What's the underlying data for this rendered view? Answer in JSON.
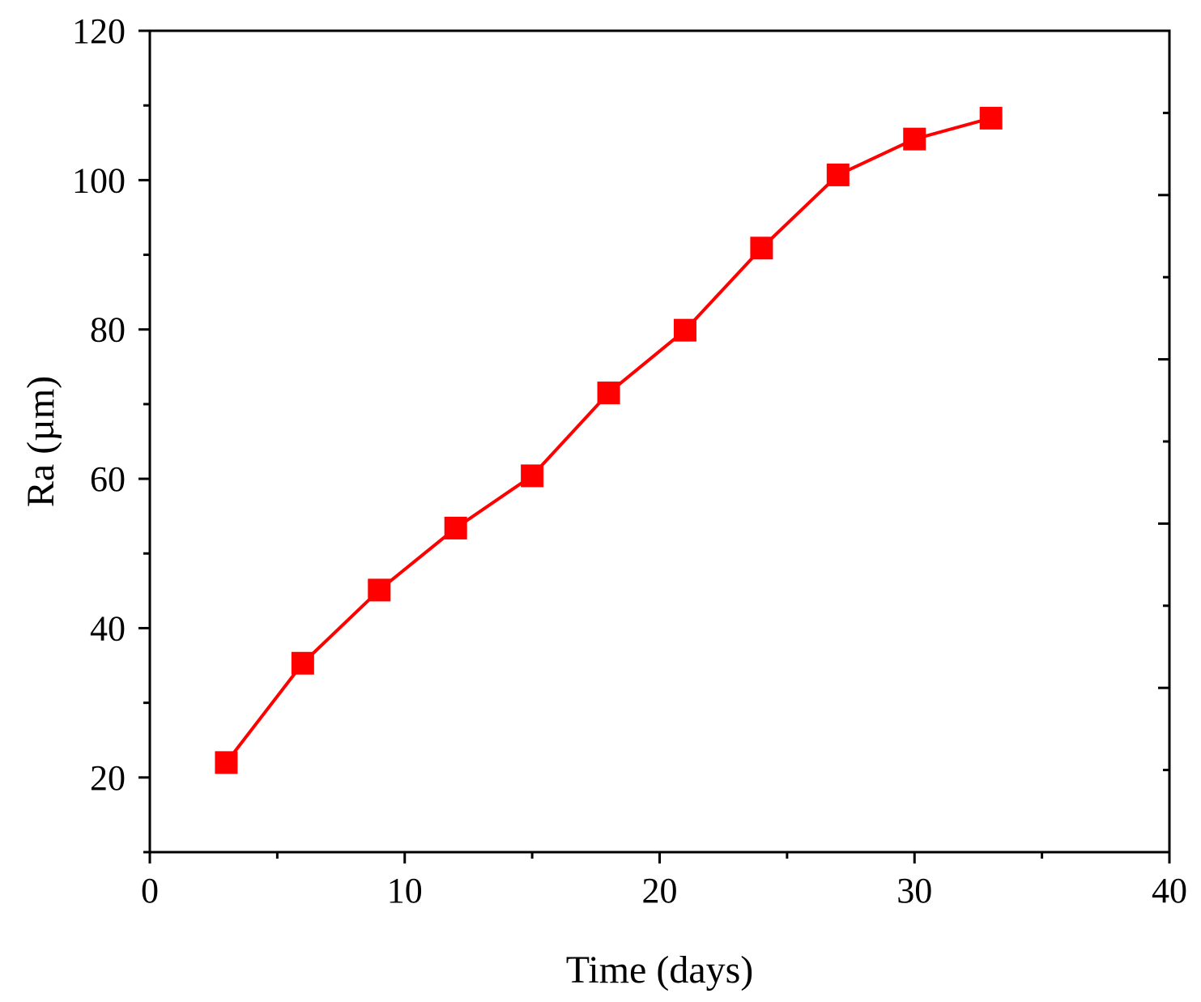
{
  "chart_data": {
    "type": "line",
    "title": "",
    "xlabel": "Time (days)",
    "ylabel": "Ra (µm)",
    "xlim": [
      0,
      40
    ],
    "ylim": [
      10,
      120
    ],
    "xticks": [
      0,
      10,
      20,
      30,
      40
    ],
    "yticks": [
      20,
      40,
      60,
      80,
      100,
      120
    ],
    "grid": false,
    "legend": "none",
    "series": [
      {
        "color": "#ff0000",
        "marker": "square",
        "x": [
          3,
          6,
          9,
          12,
          15,
          18,
          21,
          24,
          27,
          30,
          33
        ],
        "y": [
          22.0,
          35.3,
          45.1,
          53.4,
          60.4,
          71.5,
          79.9,
          90.9,
          100.7,
          105.5,
          108.3
        ]
      }
    ]
  }
}
